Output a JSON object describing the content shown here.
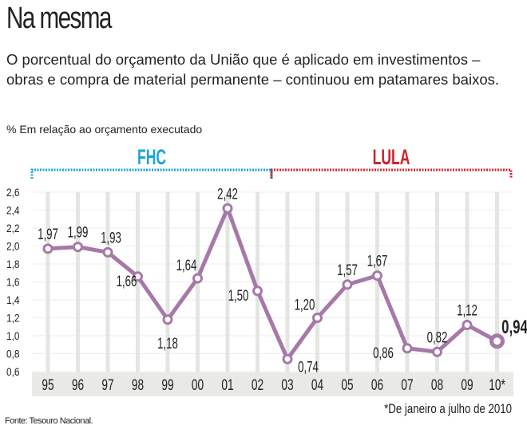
{
  "title": "Na mesma",
  "subtitle": "O porcentual do orçamento da União que é aplicado em investimentos – obras e compra de material permanente – continuou em patamares baixos.",
  "unit_label": "% Em relação ao orçamento executado",
  "source": "Fonte: Tesouro Nacional.",
  "chart_data": {
    "type": "line",
    "categories": [
      "95",
      "96",
      "97",
      "98",
      "99",
      "00",
      "01",
      "02",
      "03",
      "04",
      "05",
      "06",
      "07",
      "08",
      "09",
      "10*"
    ],
    "values": [
      1.97,
      1.99,
      1.93,
      1.66,
      1.18,
      1.64,
      2.42,
      1.5,
      0.74,
      1.2,
      1.57,
      1.67,
      0.86,
      0.82,
      1.12,
      0.94
    ],
    "data_labels": [
      "1,97",
      "1,99",
      "1,93",
      "1,66",
      "1,18",
      "1,64",
      "2,42",
      "1,50",
      "0,74",
      "1,20",
      "1,57",
      "1,67",
      "0,86",
      "0,82",
      "1,12",
      "0,94"
    ],
    "ylim": [
      0.6,
      2.6
    ],
    "yticks": [
      "0,6",
      "0,8",
      "1,0",
      "1,2",
      "1,4",
      "1,6",
      "1,8",
      "2,0",
      "2,2",
      "2,4",
      "2,6"
    ],
    "grid": "vertical",
    "periods": [
      {
        "label": "FHC",
        "from": "95",
        "to": "02",
        "color": "#1ba3d8"
      },
      {
        "label": "LULA",
        "from": "03",
        "to": "10*",
        "color": "#d0202e"
      }
    ],
    "line_color": "#a679a8",
    "footnote": "*De janeiro a julho de 2010"
  }
}
